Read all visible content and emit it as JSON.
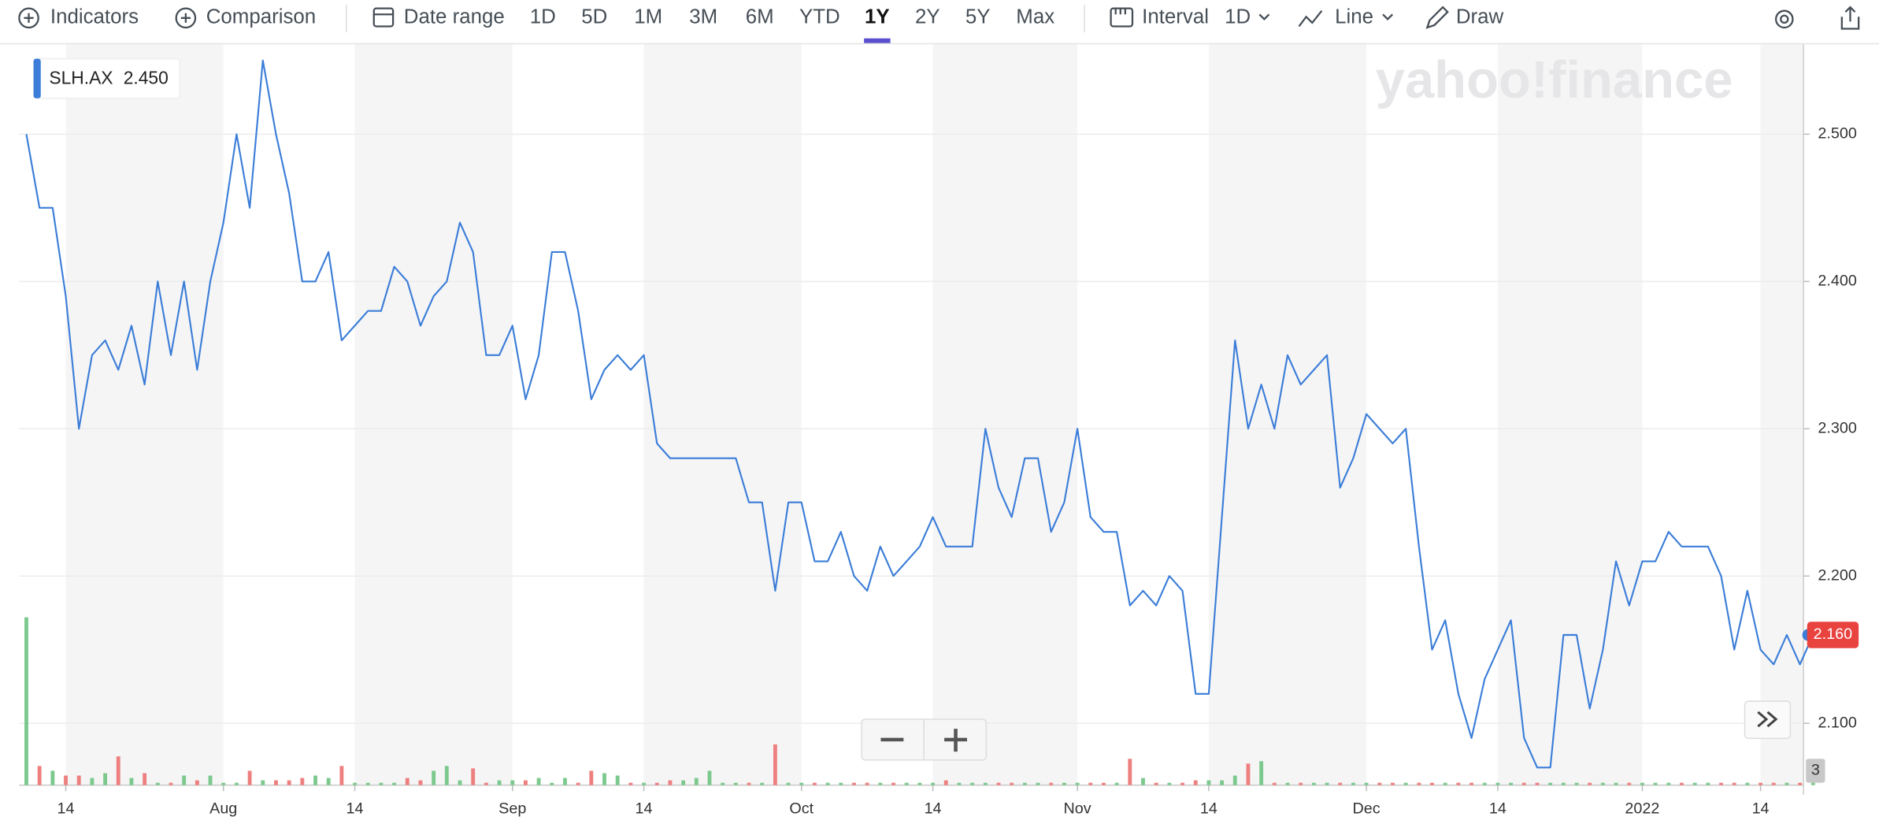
{
  "toolbar": {
    "indicators": "Indicators",
    "comparison": "Comparison",
    "date_range": "Date range",
    "ranges": [
      "1D",
      "5D",
      "1M",
      "3M",
      "6M",
      "YTD",
      "1Y",
      "2Y",
      "5Y",
      "Max"
    ],
    "interval": "Interval",
    "interval_value": "1D",
    "chart_style": "Line",
    "draw": "Draw"
  },
  "watermark": "yahoo!finance",
  "chart_data": {
    "type": "line",
    "legend_value": "2.450",
    "price_label": "2.160",
    "categories": [
      null,
      null,
      null,
      "14",
      null,
      null,
      null,
      null,
      null,
      null,
      null,
      null,
      null,
      null,
      null,
      "Aug",
      null,
      null,
      null,
      null,
      null,
      null,
      null,
      null,
      null,
      "14",
      null,
      null,
      null,
      null,
      null,
      null,
      null,
      null,
      null,
      null,
      null,
      "Sep",
      null,
      null,
      null,
      null,
      null,
      null,
      null,
      null,
      null,
      "14",
      null,
      null,
      null,
      null,
      null,
      null,
      null,
      null,
      null,
      null,
      null,
      "Oct",
      null,
      null,
      null,
      null,
      null,
      null,
      null,
      null,
      null,
      "14",
      null,
      null,
      null,
      null,
      null,
      null,
      null,
      null,
      null,
      null,
      "Nov",
      null,
      null,
      null,
      null,
      null,
      null,
      null,
      null,
      null,
      "14",
      null,
      null,
      null,
      null,
      null,
      null,
      null,
      null,
      null,
      null,
      null,
      "Dec",
      null,
      null,
      null,
      null,
      null,
      null,
      null,
      null,
      null,
      "14",
      null,
      null,
      null,
      null,
      null,
      null,
      null,
      null,
      null,
      null,
      "2022",
      null,
      null,
      null,
      null,
      null,
      null,
      null,
      null,
      "14",
      null,
      null,
      null,
      null
    ],
    "series": [
      {
        "name": "SLH.AX",
        "color": "#3b7dd8",
        "values": [
          2.5,
          2.45,
          2.45,
          2.39,
          2.3,
          2.35,
          2.36,
          2.34,
          2.37,
          2.33,
          2.4,
          2.35,
          2.4,
          2.34,
          2.4,
          2.44,
          2.5,
          2.45,
          2.55,
          2.5,
          2.46,
          2.4,
          2.4,
          2.42,
          2.36,
          2.37,
          2.38,
          2.38,
          2.41,
          2.4,
          2.37,
          2.39,
          2.4,
          2.44,
          2.42,
          2.35,
          2.35,
          2.37,
          2.32,
          2.35,
          2.42,
          2.42,
          2.38,
          2.32,
          2.34,
          2.35,
          2.34,
          2.35,
          2.29,
          2.28,
          2.28,
          2.28,
          2.28,
          2.28,
          2.28,
          2.25,
          2.25,
          2.19,
          2.25,
          2.25,
          2.21,
          2.21,
          2.23,
          2.2,
          2.19,
          2.22,
          2.2,
          2.21,
          2.22,
          2.24,
          2.22,
          2.22,
          2.22,
          2.3,
          2.26,
          2.24,
          2.28,
          2.28,
          2.23,
          2.25,
          2.3,
          2.24,
          2.23,
          2.23,
          2.18,
          2.19,
          2.18,
          2.2,
          2.19,
          2.12,
          2.12,
          2.24,
          2.36,
          2.3,
          2.33,
          2.3,
          2.35,
          2.33,
          2.34,
          2.35,
          2.26,
          2.28,
          2.31,
          2.3,
          2.29,
          2.3,
          2.22,
          2.15,
          2.17,
          2.12,
          2.09,
          2.13,
          2.15,
          2.17,
          2.09,
          2.07,
          2.07,
          2.16,
          2.16,
          2.11,
          2.15,
          2.21,
          2.18,
          2.21,
          2.21,
          2.23,
          2.22,
          2.22,
          2.22,
          2.2,
          2.15,
          2.19,
          2.15,
          2.14,
          2.16,
          2.14,
          2.16
        ]
      }
    ],
    "ylim": [
      2.058,
      2.561
    ],
    "yticks": [
      {
        "value": 2.1,
        "label": "2.100"
      },
      {
        "value": 2.2,
        "label": "2.200"
      },
      {
        "value": 2.3,
        "label": "2.300"
      },
      {
        "value": 2.4,
        "label": "2.400"
      },
      {
        "value": 2.5,
        "label": "2.500"
      }
    ],
    "grid": true,
    "volume": {
      "up_color": "#7cc98e",
      "down_color": "#ee7f7f",
      "ylim": [
        0,
        35
      ],
      "yticks": [
        3
      ],
      "values": [
        35,
        4,
        3,
        2,
        2,
        1.5,
        2.5,
        6,
        1.5,
        2.5,
        0.5,
        0.5,
        2,
        1,
        2,
        0.5,
        0.5,
        3,
        1,
        1,
        1,
        1.5,
        2,
        1.5,
        4,
        0.5,
        0.5,
        0.5,
        0.5,
        1.5,
        1,
        3,
        4,
        1,
        3.5,
        0.5,
        1,
        1,
        1,
        1.5,
        0.5,
        1.5,
        0.5,
        3,
        2.5,
        2,
        0.5,
        0.5,
        0.5,
        1,
        1,
        1.5,
        3,
        0.5,
        0.5,
        0.5,
        0.5,
        8.5,
        0.5,
        0.5,
        0.5,
        0.5,
        0.5,
        0.5,
        0.5,
        0.5,
        0.5,
        0.5,
        0.5,
        0.5,
        1,
        0.5,
        0.5,
        0.5,
        0.5,
        0.5,
        0.5,
        0.5,
        0.5,
        0.5,
        0.5,
        0.5,
        0.5,
        0.5,
        5.5,
        1.5,
        0.5,
        0.5,
        0.5,
        1,
        1,
        1,
        2,
        4.5,
        5,
        0.5,
        0.5,
        0.5,
        0.5,
        0.5,
        0.5,
        0.5,
        0.5,
        0.5,
        0.5,
        0.5,
        0.5,
        0.5,
        0.5,
        0.5,
        0.5,
        0.5,
        0.5,
        0.5,
        0.5,
        0.5,
        0.5,
        0.5,
        0.5,
        0.5,
        0.5,
        0.5,
        0.5,
        0.5,
        0.5,
        0.5,
        0.5,
        0.5,
        0.5,
        0.5,
        0.5,
        0.5,
        0.5,
        0.5,
        0.5,
        0.5,
        0.5
      ]
    }
  }
}
